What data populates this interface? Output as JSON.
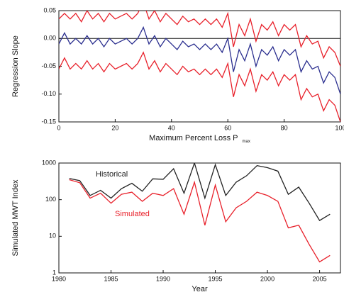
{
  "chart_data": [
    {
      "type": "line",
      "xlabel": "Maximum Percent Loss P",
      "xlabel_sub": "max",
      "ylabel": "Regression Slope",
      "x": [
        0,
        2,
        4,
        6,
        8,
        10,
        12,
        14,
        16,
        18,
        20,
        22,
        24,
        26,
        28,
        30,
        32,
        34,
        36,
        38,
        40,
        42,
        44,
        46,
        48,
        50,
        52,
        54,
        56,
        58,
        60,
        62,
        64,
        66,
        68,
        70,
        72,
        74,
        76,
        78,
        80,
        82,
        84,
        86,
        88,
        90,
        92,
        94,
        96,
        98,
        100
      ],
      "series": [
        {
          "color": "#e8202a",
          "values": [
            0.035,
            0.045,
            0.035,
            0.045,
            0.03,
            0.05,
            0.035,
            0.045,
            0.03,
            0.045,
            0.035,
            0.04,
            0.045,
            0.035,
            0.045,
            0.065,
            0.035,
            0.05,
            0.03,
            0.045,
            0.035,
            0.025,
            0.04,
            0.03,
            0.035,
            0.025,
            0.035,
            0.025,
            0.035,
            0.02,
            0.045,
            -0.015,
            0.025,
            0.005,
            0.035,
            -0.005,
            0.025,
            0.015,
            0.03,
            0.005,
            0.025,
            0.015,
            0.025,
            -0.015,
            0.005,
            -0.01,
            -0.005,
            -0.035,
            -0.015,
            -0.025,
            -0.05
          ]
        },
        {
          "color": "#e8202a",
          "values": [
            -0.055,
            -0.035,
            -0.055,
            -0.045,
            -0.055,
            -0.04,
            -0.055,
            -0.045,
            -0.06,
            -0.045,
            -0.055,
            -0.05,
            -0.045,
            -0.055,
            -0.045,
            -0.025,
            -0.055,
            -0.04,
            -0.06,
            -0.045,
            -0.055,
            -0.065,
            -0.05,
            -0.06,
            -0.055,
            -0.065,
            -0.055,
            -0.065,
            -0.055,
            -0.07,
            -0.045,
            -0.105,
            -0.065,
            -0.085,
            -0.055,
            -0.095,
            -0.065,
            -0.075,
            -0.06,
            -0.085,
            -0.065,
            -0.075,
            -0.065,
            -0.11,
            -0.09,
            -0.105,
            -0.1,
            -0.13,
            -0.11,
            -0.12,
            -0.15
          ]
        },
        {
          "color": "#2b2f8f",
          "values": [
            -0.01,
            0.01,
            -0.01,
            0,
            -0.01,
            0.005,
            -0.01,
            0,
            -0.015,
            0,
            -0.01,
            -0.005,
            0,
            -0.01,
            0,
            0.02,
            -0.01,
            0.005,
            -0.015,
            0,
            -0.01,
            -0.02,
            -0.005,
            -0.015,
            -0.01,
            -0.02,
            -0.01,
            -0.02,
            -0.01,
            -0.025,
            0,
            -0.06,
            -0.02,
            -0.04,
            -0.01,
            -0.05,
            -0.02,
            -0.03,
            -0.015,
            -0.04,
            -0.02,
            -0.03,
            -0.02,
            -0.06,
            -0.04,
            -0.055,
            -0.05,
            -0.08,
            -0.06,
            -0.07,
            -0.1
          ]
        }
      ],
      "xlim": [
        0,
        100
      ],
      "xticks": [
        0,
        20,
        40,
        60,
        80,
        100
      ],
      "ylim": [
        -0.15,
        0.05
      ],
      "yticks": [
        {
          "value": -0.15,
          "label": "-0.15"
        },
        {
          "value": -0.1,
          "label": "-0.10"
        },
        {
          "value": -0.05,
          "label": "-0.05"
        },
        {
          "value": 0,
          "label": "0.00"
        },
        {
          "value": 0.05,
          "label": "0.05"
        }
      ],
      "zero_line": true,
      "log_y": false
    },
    {
      "type": "line",
      "xlabel": "Year",
      "ylabel": "Simulated MWT Index",
      "x": [
        1981,
        1982,
        1983,
        1984,
        1985,
        1986,
        1987,
        1988,
        1989,
        1990,
        1991,
        1992,
        1993,
        1994,
        1995,
        1996,
        1997,
        1998,
        1999,
        2000,
        2001,
        2002,
        2003,
        2004,
        2005,
        2006
      ],
      "series": [
        {
          "name": "Historical",
          "color": "#222222",
          "values": [
            380,
            330,
            130,
            180,
            110,
            200,
            280,
            170,
            370,
            360,
            700,
            150,
            1000,
            110,
            900,
            130,
            300,
            450,
            850,
            750,
            600,
            140,
            220,
            80,
            27,
            40
          ]
        },
        {
          "name": "Simulated",
          "color": "#e8202a",
          "values": [
            350,
            290,
            110,
            150,
            80,
            140,
            160,
            90,
            150,
            130,
            200,
            40,
            300,
            20,
            250,
            25,
            60,
            90,
            160,
            130,
            90,
            17,
            20,
            6,
            2,
            3
          ]
        }
      ],
      "xlim": [
        1980,
        2007
      ],
      "xticks": [
        1980,
        1985,
        1990,
        1995,
        2000,
        2005
      ],
      "ylim": [
        1,
        1000
      ],
      "yticks": [
        1,
        10,
        100,
        1000
      ],
      "zero_line": false,
      "log_y": true
    }
  ]
}
